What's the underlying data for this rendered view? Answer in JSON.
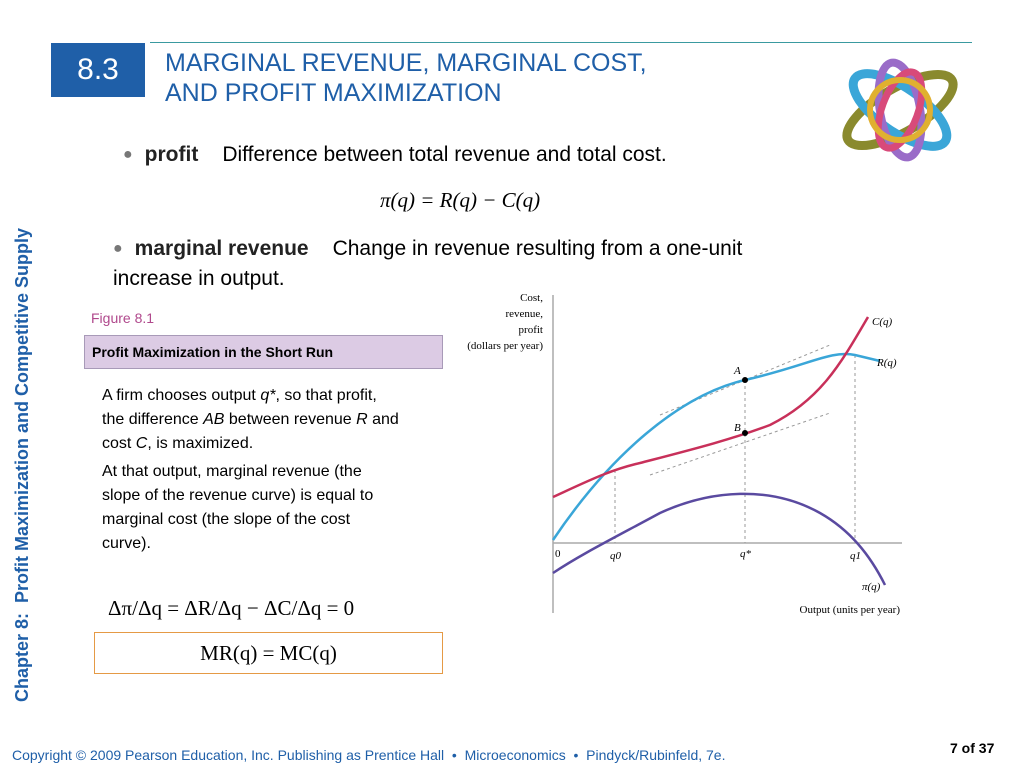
{
  "slide": {
    "section_number": "8.3",
    "title_lines": [
      "MARGINAL REVENUE, MARGINAL COST,",
      "AND PROFIT MAXIMIZATION"
    ],
    "bullets": [
      {
        "term": "profit",
        "definition": "Difference between total revenue and total cost."
      },
      {
        "term": "marginal revenue",
        "definition": "Change in revenue resulting from a one-unit increase in output."
      }
    ],
    "profit_equation": "π(q) = R(q) − C(q)",
    "figure": {
      "label": "Figure 8.1",
      "caption": "Profit Maximization in the Short Run",
      "paragraphs": [
        [
          {
            "text": "A firm chooses output "
          },
          {
            "text": "q*",
            "italic": true
          },
          {
            "text": ", so that profit, the difference "
          },
          {
            "text": "AB",
            "italic": true
          },
          {
            "text": " between revenue "
          },
          {
            "text": "R",
            "italic": true
          },
          {
            "text": " and cost "
          },
          {
            "text": "C",
            "italic": true
          },
          {
            "text": ", is maximized."
          }
        ],
        [
          {
            "text": "At that output, marginal revenue (the slope of the revenue curve) is equal to marginal cost (the slope of the cost curve)."
          }
        ]
      ],
      "equation": "Δπ/Δq = ΔR/Δq − ΔC/Δq = 0",
      "boxed_equation": "MR(q) = MC(q)",
      "graph": {
        "y_axis_label": [
          "Cost,",
          "revenue,",
          "profit",
          "(dollars per year)"
        ],
        "x_axis_label": "Output (units per year)",
        "curve_labels": {
          "cost": "C(q)",
          "revenue": "R(q)",
          "profit": "π(q)"
        },
        "point_labels": [
          "A",
          "B"
        ],
        "x_labels": [
          "0",
          "q0",
          "q*",
          "q1"
        ]
      }
    },
    "sidebar": {
      "chapter": "Chapter 8:",
      "chapter_title": "Profit Maximization and Competitive Supply"
    },
    "footer": {
      "copyright": "Copyright © 2009 Pearson Education, Inc. Publishing as Prentice Hall  •  Microeconomics  •  Pindyck/Rubinfeld, 7e.",
      "page": "7 of 37"
    }
  }
}
